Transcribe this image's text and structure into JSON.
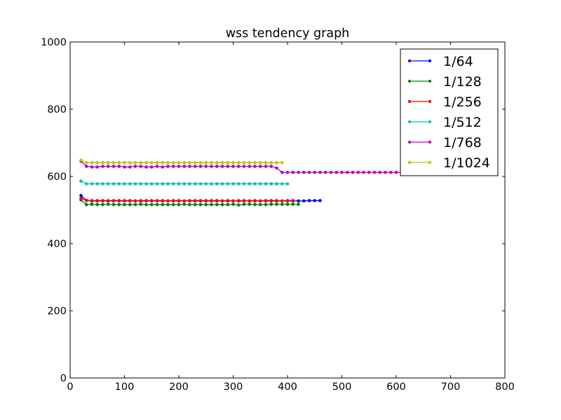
{
  "chart_data": {
    "type": "line",
    "title": "wss tendency graph",
    "xlabel": "",
    "ylabel": "",
    "xlim": [
      0,
      800
    ],
    "ylim": [
      0,
      1000
    ],
    "xticks": [
      "0",
      "100",
      "200",
      "300",
      "400",
      "500",
      "600",
      "700",
      "800"
    ],
    "yticks": [
      "0",
      "200",
      "400",
      "600",
      "800",
      "1000"
    ],
    "grid": false,
    "legend_position": "top-right",
    "series": [
      {
        "name": "1/64",
        "color": "#0000ff",
        "x": [
          20,
          30,
          40,
          50,
          60,
          70,
          80,
          90,
          100,
          110,
          120,
          130,
          140,
          150,
          160,
          170,
          180,
          190,
          200,
          210,
          220,
          230,
          240,
          250,
          260,
          270,
          280,
          290,
          300,
          310,
          320,
          330,
          340,
          350,
          360,
          370,
          380,
          390,
          400,
          410,
          420,
          430,
          440,
          450,
          460
        ],
        "y": [
          543,
          528,
          527,
          527,
          527,
          527,
          527,
          527,
          527,
          527,
          527,
          527,
          527,
          527,
          527,
          527,
          527,
          527,
          527,
          527,
          527,
          527,
          527,
          527,
          527,
          527,
          527,
          527,
          527,
          527,
          527,
          527,
          527,
          527,
          527,
          527,
          527,
          527,
          527,
          527,
          527,
          527,
          528,
          528,
          528
        ]
      },
      {
        "name": "1/128",
        "color": "#008000",
        "x": [
          20,
          30,
          40,
          50,
          60,
          70,
          80,
          90,
          100,
          110,
          120,
          130,
          140,
          150,
          160,
          170,
          180,
          190,
          200,
          210,
          220,
          230,
          240,
          250,
          260,
          270,
          280,
          290,
          300,
          310,
          320,
          330,
          340,
          350,
          360,
          370,
          380,
          390,
          400,
          410,
          420
        ],
        "y": [
          530,
          516,
          517,
          516,
          516,
          517,
          516,
          516,
          516,
          516,
          516,
          517,
          516,
          516,
          516,
          516,
          516,
          516,
          516,
          517,
          516,
          516,
          516,
          516,
          516,
          516,
          516,
          516,
          517,
          515,
          517,
          517,
          516,
          516,
          516,
          517,
          517,
          517,
          517,
          517,
          517
        ]
      },
      {
        "name": "1/256",
        "color": "#ff0000",
        "x": [
          20,
          30,
          40,
          50,
          60,
          70,
          80,
          90,
          100,
          110,
          120,
          130,
          140,
          150,
          160,
          170,
          180,
          190,
          200,
          210,
          220,
          230,
          240,
          250,
          260,
          270,
          280,
          290,
          300,
          310,
          320,
          330,
          340,
          350,
          360,
          370,
          380,
          390,
          400,
          410
        ],
        "y": [
          535,
          529,
          528,
          528,
          528,
          528,
          528,
          528,
          528,
          528,
          527,
          528,
          528,
          528,
          528,
          528,
          527,
          528,
          528,
          527,
          528,
          528,
          528,
          528,
          528,
          528,
          527,
          528,
          527,
          528,
          528,
          527,
          528,
          527,
          528,
          528,
          528,
          527,
          528,
          528
        ]
      },
      {
        "name": "1/512",
        "color": "#00bfbf",
        "x": [
          20,
          30,
          40,
          50,
          60,
          70,
          80,
          90,
          100,
          110,
          120,
          130,
          140,
          150,
          160,
          170,
          180,
          190,
          200,
          210,
          220,
          230,
          240,
          250,
          260,
          270,
          280,
          290,
          300,
          310,
          320,
          330,
          340,
          350,
          360,
          370,
          380,
          390,
          400
        ],
        "y": [
          586,
          578,
          578,
          578,
          578,
          578,
          578,
          578,
          578,
          578,
          578,
          578,
          578,
          578,
          578,
          578,
          578,
          578,
          578,
          578,
          578,
          578,
          578,
          578,
          578,
          578,
          578,
          578,
          578,
          578,
          578,
          578,
          578,
          578,
          578,
          578,
          578,
          578,
          578
        ]
      },
      {
        "name": "1/768",
        "color": "#bf00bf",
        "x": [
          20,
          30,
          40,
          50,
          60,
          70,
          80,
          90,
          100,
          110,
          120,
          130,
          140,
          150,
          160,
          170,
          180,
          190,
          200,
          210,
          220,
          230,
          240,
          250,
          260,
          270,
          280,
          290,
          300,
          310,
          320,
          330,
          340,
          350,
          360,
          370,
          380,
          390,
          400,
          410,
          420,
          430,
          440,
          450,
          460,
          470,
          480,
          490,
          500,
          510,
          520,
          530,
          540,
          550,
          560,
          570,
          580,
          590,
          600,
          610
        ],
        "y": [
          645,
          630,
          628,
          628,
          630,
          630,
          630,
          630,
          628,
          628,
          630,
          630,
          628,
          628,
          630,
          628,
          630,
          630,
          630,
          630,
          630,
          630,
          630,
          630,
          630,
          630,
          630,
          630,
          630,
          630,
          630,
          630,
          630,
          630,
          630,
          630,
          625,
          612,
          612,
          612,
          612,
          612,
          612,
          612,
          612,
          612,
          612,
          612,
          612,
          612,
          612,
          612,
          612,
          612,
          612,
          612,
          612,
          612,
          612,
          612
        ]
      },
      {
        "name": "1/1024",
        "color": "#bfbf00",
        "x": [
          20,
          30,
          40,
          50,
          60,
          70,
          80,
          90,
          100,
          110,
          120,
          130,
          140,
          150,
          160,
          170,
          180,
          190,
          200,
          210,
          220,
          230,
          240,
          250,
          260,
          270,
          280,
          290,
          300,
          310,
          320,
          330,
          340,
          350,
          360,
          370,
          380,
          390
        ],
        "y": [
          648,
          641,
          641,
          641,
          641,
          641,
          641,
          641,
          641,
          641,
          641,
          641,
          641,
          641,
          641,
          641,
          641,
          641,
          641,
          641,
          641,
          641,
          641,
          641,
          641,
          641,
          641,
          641,
          641,
          641,
          641,
          641,
          641,
          641,
          641,
          641,
          641,
          641
        ]
      }
    ]
  }
}
